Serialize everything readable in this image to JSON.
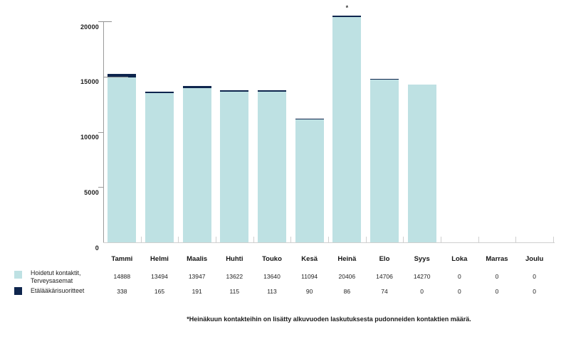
{
  "chart_data": {
    "type": "stacked-bar",
    "title": "",
    "xlabel": "",
    "ylabel": "",
    "categories": [
      "Tammi",
      "Helmi",
      "Maalis",
      "Huhti",
      "Touko",
      "Kesä",
      "Heinä",
      "Elo",
      "Syys",
      "Loka",
      "Marras",
      "Joulu"
    ],
    "series": [
      {
        "name": "Hoidetut kontaktit, Terveysasemat",
        "color": "#bee1e3",
        "values": [
          14888,
          13494,
          13947,
          13622,
          13640,
          11094,
          20406,
          14706,
          14270,
          0,
          0,
          0
        ]
      },
      {
        "name": "Etälääkärisuoritteet",
        "color": "#0e254d",
        "values": [
          338,
          165,
          191,
          115,
          113,
          90,
          86,
          74,
          0,
          0,
          0,
          0
        ]
      }
    ],
    "y_ticks": [
      0,
      5000,
      10000,
      15000,
      20000
    ],
    "ylim": [
      0,
      20000
    ],
    "grid": false,
    "legend_position": "bottom-left",
    "annotations": [
      {
        "category": "Heinä",
        "symbol": "*"
      }
    ]
  },
  "legend": {
    "item1_line1": "Hoidetut kontaktit,",
    "item1_line2": "Terveysasemat",
    "item2": "Etälääkärisuoritteet"
  },
  "footnote": "*Heinäkuun kontakteihin on lisätty alkuvuoden laskutuksesta pudonneiden kontaktien määrä."
}
